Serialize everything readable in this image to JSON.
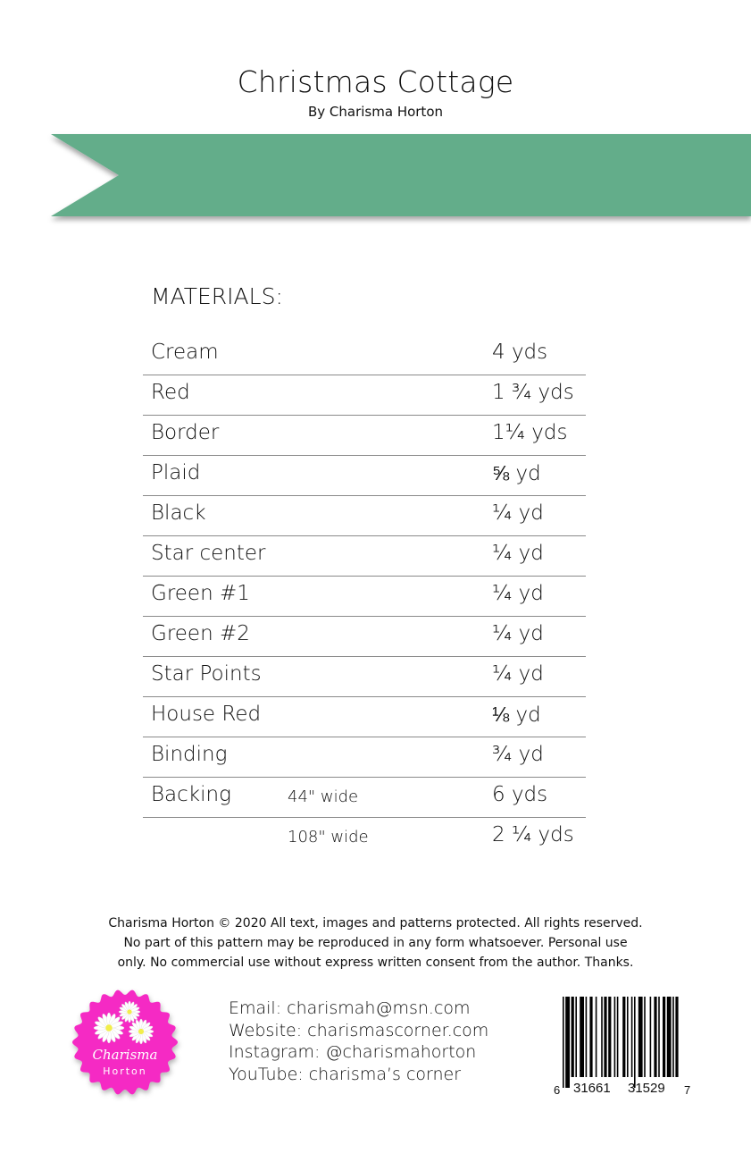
{
  "header": {
    "title": "Christmas Cottage",
    "byline": "By Charisma Horton",
    "banner_color": "#63AD8A"
  },
  "materials": {
    "heading": "MATERIALS:",
    "rows": [
      {
        "item": "Cream",
        "note": "",
        "amount": "4 yds"
      },
      {
        "item": "Red",
        "note": "",
        "amount": "1 ¾ yds"
      },
      {
        "item": "Border",
        "note": "",
        "amount": "1¼ yds"
      },
      {
        "item": "Plaid",
        "note": "",
        "amount": "⅝ yd"
      },
      {
        "item": "Black",
        "note": "",
        "amount": "¼ yd"
      },
      {
        "item": "Star center",
        "note": "",
        "amount": "¼ yd"
      },
      {
        "item": "Green #1",
        "note": "",
        "amount": "¼ yd"
      },
      {
        "item": "Green #2",
        "note": "",
        "amount": "¼ yd"
      },
      {
        "item": "Star Points",
        "note": "",
        "amount": "¼ yd"
      },
      {
        "item": "House Red",
        "note": "",
        "amount": "⅛ yd"
      },
      {
        "item": "Binding",
        "note": "",
        "amount": "¾ yd"
      },
      {
        "item": "Backing",
        "note": "44\" wide",
        "amount": "6 yds"
      },
      {
        "item": "",
        "note": "108\" wide",
        "amount": "2 ¼ yds"
      }
    ]
  },
  "footer": {
    "copyright_lines": [
      "Charisma Horton © 2020 All text, images and patterns protected. All rights reserved.",
      "No part of this pattern may be reproduced in any form whatsoever. Personal use",
      "only. No commercial use without express written consent from the author.  Thanks."
    ],
    "contact": [
      "Email: charismah@msn.com",
      "Website: charismascorner.com",
      "Instagram: @charismahorton",
      "YouTube: charisma’s corner"
    ],
    "logo": {
      "line1": "Charisma",
      "line2": "Horton",
      "color": "#F52BC4"
    },
    "barcode": {
      "first": "6",
      "left": "31661",
      "right": "31529",
      "last": "7"
    }
  }
}
